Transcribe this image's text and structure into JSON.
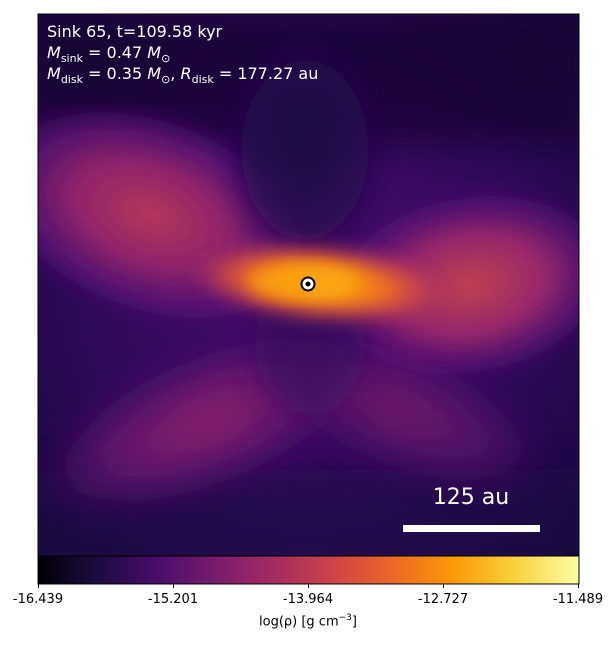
{
  "chart_data": {
    "type": "heatmap",
    "annotations": {
      "sink_line": "Sink 65, t=109.58 kyr",
      "m_sink": {
        "symbol": "M",
        "sub": "sink",
        "value": "= 0.47",
        "unit": "M",
        "unit_sub": "⊙"
      },
      "m_disk": {
        "symbol": "M",
        "sub": "disk",
        "value": "= 0.35",
        "unit": "M",
        "unit_sub": "⊙"
      },
      "r_disk": {
        "symbol": "R",
        "sub": "disk",
        "value": "= 177.27 au"
      },
      "scale_bar_label": "125 au"
    },
    "colorbar": {
      "colormap": "inferno",
      "range": [
        -16.439,
        -11.489
      ],
      "ticks": [
        "-16.439",
        "-15.201",
        "-13.964",
        "-12.727",
        "-11.489"
      ],
      "label": "log(ρ) [g cm",
      "label_exp": "−3",
      "label_close": "]"
    },
    "axes": {
      "xticks": "none",
      "yticks": "none"
    }
  },
  "colors": {
    "c0": "#000004",
    "c1": "#1b0c41",
    "c2": "#4a0c6b",
    "c3": "#781c6d",
    "c4": "#a52c60",
    "c5": "#cf4446",
    "c6": "#ed6925",
    "c7": "#fb9b06",
    "c8": "#f7d13d",
    "c9": "#fcffa4"
  }
}
